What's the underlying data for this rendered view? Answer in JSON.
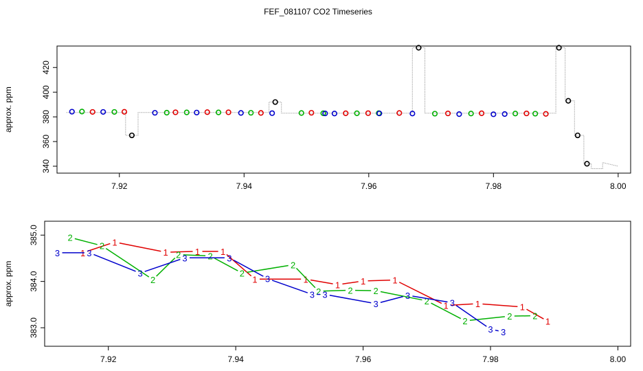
{
  "title": "FEF_081107  CO2 Timeseries",
  "colors": {
    "red": "#e00000",
    "green": "#00b000",
    "blue": "#0000cc",
    "black": "#000000",
    "trace": "#a8a8a8"
  },
  "chart_data": [
    {
      "type": "scatter",
      "ylabel": "approx. ppm",
      "xlim": [
        7.91,
        8.002
      ],
      "ylim": [
        334.4,
        437.4
      ],
      "xticks": [
        7.92,
        7.94,
        7.96,
        7.98,
        8.0
      ],
      "xtick_labels": [
        "7.92",
        "7.94",
        "7.96",
        "7.98",
        "8.00"
      ],
      "yticks": [
        340,
        360,
        380,
        400,
        420
      ],
      "ytick_labels": [
        "340",
        "360",
        "380",
        "400",
        "420"
      ],
      "trace": {
        "x": [
          7.9115,
          7.921,
          7.921,
          7.923,
          7.923,
          7.944,
          7.944,
          7.946,
          7.946,
          7.967,
          7.967,
          7.969,
          7.969,
          7.99,
          7.99,
          7.9915,
          7.9915,
          7.993,
          7.993,
          7.9945,
          7.9945,
          7.9957,
          7.9957,
          7.9975,
          7.9975,
          8.0
        ],
        "y": [
          383.5,
          383.5,
          365.0,
          365.0,
          383.5,
          383.5,
          392.0,
          392.0,
          383.0,
          383.0,
          436.0,
          436.0,
          383.0,
          383.0,
          436.0,
          436.0,
          393.0,
          393.0,
          365.0,
          365.0,
          342.0,
          342.0,
          338.0,
          338.0,
          343.0,
          340.0
        ]
      },
      "series": [
        {
          "name": "1",
          "color": "#e00000",
          "x": [
            7.9157,
            7.9208,
            7.929,
            7.9341,
            7.9375,
            7.9427,
            7.9508,
            7.9563,
            7.9599,
            7.9649,
            7.9727,
            7.9781,
            7.9853,
            7.9884
          ],
          "y": [
            384.0,
            384.1,
            383.7,
            383.8,
            383.7,
            383.2,
            383.3,
            382.9,
            383.0,
            383.1,
            382.8,
            382.9,
            382.8,
            382.4
          ]
        },
        {
          "name": "2",
          "color": "#00b000",
          "x": [
            7.914,
            7.9192,
            7.9276,
            7.9308,
            7.9359,
            7.9411,
            7.9492,
            7.9527,
            7.9581,
            7.9616,
            7.9706,
            7.9764,
            7.9835,
            7.9867
          ],
          "y": [
            384.3,
            384.0,
            383.4,
            383.6,
            383.6,
            383.3,
            383.1,
            382.9,
            382.9,
            383.0,
            382.6,
            382.7,
            382.7,
            382.6
          ]
        },
        {
          "name": "3",
          "color": "#0000cc",
          "x": [
            7.9124,
            7.9174,
            7.9257,
            7.9324,
            7.9395,
            7.9445,
            7.953,
            7.9545,
            7.9617,
            7.967,
            7.9745,
            7.98,
            7.9818
          ],
          "y": [
            384.2,
            384.0,
            383.3,
            383.5,
            383.2,
            383.0,
            382.8,
            382.7,
            382.8,
            382.7,
            382.2,
            382.1,
            382.3
          ]
        }
      ],
      "black_points": {
        "color": "#000000",
        "x": [
          7.922,
          7.945,
          7.968,
          7.9905,
          7.992,
          7.9935,
          7.995
        ],
        "y": [
          365.0,
          392.0,
          436.0,
          436.0,
          393.0,
          365.0,
          342.0
        ]
      }
    },
    {
      "type": "line",
      "ylabel": "approx. ppm",
      "xlim": [
        7.91,
        8.002
      ],
      "ylim": [
        382.6,
        385.3
      ],
      "xticks": [
        7.92,
        7.94,
        7.96,
        7.98,
        8.0
      ],
      "xtick_labels": [
        "7.92",
        "7.94",
        "7.96",
        "7.98",
        "8.00"
      ],
      "yticks": [
        383.0,
        384.0,
        385.0
      ],
      "ytick_labels": [
        "383.0",
        "384.0",
        "385.0"
      ],
      "series": [
        {
          "name": "1",
          "label": "1",
          "color": "#e00000",
          "x": [
            7.916,
            7.921,
            7.929,
            7.934,
            7.938,
            7.943,
            7.951,
            7.956,
            7.96,
            7.965,
            7.973,
            7.978,
            7.985,
            7.989
          ],
          "y": [
            384.62,
            384.85,
            384.63,
            384.65,
            384.65,
            384.05,
            384.05,
            383.93,
            384.01,
            384.03,
            383.48,
            383.52,
            383.45,
            383.14
          ]
        },
        {
          "name": "2",
          "label": "2",
          "color": "#00b000",
          "x": [
            7.914,
            7.919,
            7.927,
            7.931,
            7.936,
            7.941,
            7.949,
            7.953,
            7.958,
            7.962,
            7.97,
            7.976,
            7.983,
            7.987
          ],
          "y": [
            384.95,
            384.77,
            384.04,
            384.58,
            384.55,
            384.18,
            384.36,
            383.79,
            383.81,
            383.8,
            383.58,
            383.15,
            383.25,
            383.26
          ]
        },
        {
          "name": "3",
          "label": "3",
          "color": "#0000cc",
          "x": [
            7.912,
            7.917,
            7.925,
            7.932,
            7.939,
            7.945,
            7.952,
            7.954,
            7.962,
            7.967,
            7.974,
            7.98,
            7.982
          ],
          "y": [
            384.62,
            384.62,
            384.18,
            384.51,
            384.51,
            384.06,
            383.72,
            383.72,
            383.52,
            383.7,
            383.54,
            382.97,
            382.91
          ]
        }
      ]
    }
  ]
}
